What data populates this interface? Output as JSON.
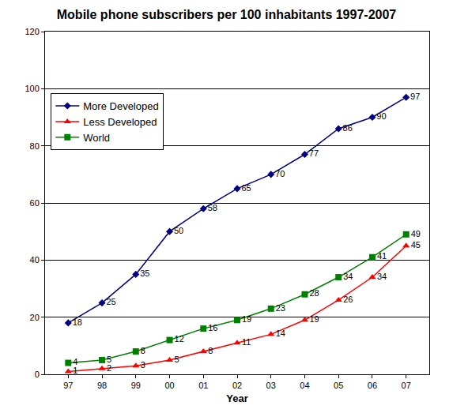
{
  "chart_data": {
    "type": "line",
    "title": "Mobile phone subscribers per 100 inhabitants 1997-2007",
    "x_label": "Year",
    "categories": [
      "97",
      "98",
      "99",
      "00",
      "01",
      "02",
      "03",
      "04",
      "05",
      "06",
      "07"
    ],
    "series": [
      {
        "name": "More Developed",
        "color": "#000080",
        "marker": "diamond",
        "line_style": "solid",
        "values": [
          18,
          25,
          35,
          50,
          58,
          65,
          70,
          77,
          86,
          90,
          97
        ]
      },
      {
        "name": "Less Developed",
        "color": "#ff0000",
        "marker": "triangle-up",
        "line_style": "solid",
        "values": [
          1,
          2,
          3,
          5,
          8,
          11,
          14,
          19,
          26,
          34,
          45
        ]
      },
      {
        "name": "World",
        "color": "#008000",
        "marker": "square",
        "line_style": "solid",
        "values": [
          4,
          5,
          8,
          12,
          16,
          19,
          23,
          28,
          34,
          41,
          49
        ]
      }
    ],
    "ylim": [
      0,
      120
    ],
    "yticks": [
      0,
      20,
      40,
      60,
      80,
      100,
      120
    ],
    "grid": true,
    "legend": "upper left",
    "data_labels": true
  }
}
